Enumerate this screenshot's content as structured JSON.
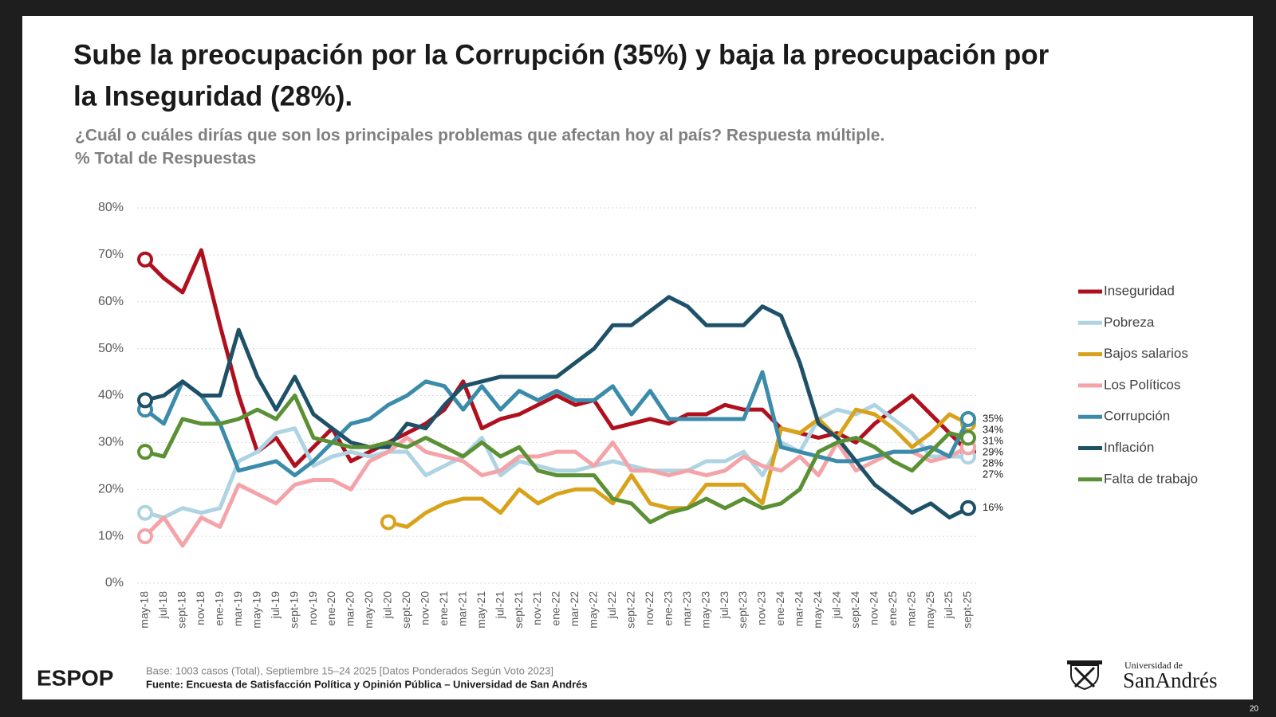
{
  "chart_data": {
    "type": "line",
    "title": [
      "Sube la preocupación por la Corrupción (35%) y baja la preocupación por",
      "la Inseguridad (28%)."
    ],
    "subtitle": [
      "¿Cuál o cuáles dirías que son los principales problemas que afectan hoy al país? Respuesta múltiple.",
      "% Total de Respuestas"
    ],
    "categories": [
      "may-18",
      "jul-18",
      "sept-18",
      "nov-18",
      "ene-19",
      "mar-19",
      "may-19",
      "jul-19",
      "sept-19",
      "nov-19",
      "ene-20",
      "mar-20",
      "may-20",
      "jul-20",
      "sept-20",
      "nov-20",
      "ene-21",
      "mar-21",
      "may-21",
      "jul-21",
      "sept-21",
      "nov-21",
      "ene-22",
      "mar-22",
      "may-22",
      "jul-22",
      "sept-22",
      "nov-22",
      "ene-23",
      "mar-23",
      "may-23",
      "jul-23",
      "sept-23",
      "nov-23",
      "ene-24",
      "mar-24",
      "may-24",
      "jul-24",
      "sept-24",
      "nov-24",
      "ene-25",
      "mar-25",
      "may-25",
      "jul-25",
      "sept-25"
    ],
    "ylim": [
      0,
      80
    ],
    "yticks": [
      {
        "value": 0,
        "label": "0%"
      },
      {
        "value": 10,
        "label": "10%"
      },
      {
        "value": 20,
        "label": "20%"
      },
      {
        "value": 30,
        "label": "30%"
      },
      {
        "value": 40,
        "label": "40%"
      },
      {
        "value": 50,
        "label": "50%"
      },
      {
        "value": 60,
        "label": "60%"
      },
      {
        "value": 70,
        "label": "70%"
      },
      {
        "value": 80,
        "label": "80%"
      }
    ],
    "grid": true,
    "legend": "right",
    "series": [
      {
        "name": "Inseguridad",
        "color": "#b0101e",
        "values": [
          69,
          65,
          62,
          71,
          55,
          40,
          28,
          31,
          25,
          29,
          33,
          26,
          28,
          30,
          32,
          34,
          37,
          43,
          33,
          35,
          36,
          38,
          40,
          38,
          39,
          33,
          34,
          35,
          34,
          36,
          36,
          38,
          37,
          37,
          33,
          32,
          31,
          32,
          30,
          34,
          37,
          40,
          36,
          32,
          28
        ],
        "value_labels": [
          null,
          null,
          null,
          null,
          null,
          null,
          null,
          null,
          null,
          null,
          null,
          null,
          null,
          null,
          null,
          null,
          null,
          null,
          null,
          null,
          null,
          null,
          null,
          null,
          null,
          null,
          null,
          null,
          null,
          null,
          null,
          null,
          null,
          null,
          null,
          null,
          null,
          null,
          null,
          null,
          null,
          null,
          null,
          null,
          "28%"
        ]
      },
      {
        "name": "Pobreza",
        "color": "#aed3e3",
        "values": [
          15,
          14,
          16,
          15,
          16,
          26,
          28,
          32,
          33,
          25,
          27,
          28,
          27,
          28,
          28,
          23,
          25,
          27,
          31,
          23,
          26,
          25,
          24,
          24,
          25,
          26,
          25,
          24,
          24,
          24,
          26,
          26,
          28,
          23,
          30,
          28,
          35,
          37,
          36,
          38,
          35,
          32,
          27,
          27,
          27
        ],
        "value_labels": [
          null,
          null,
          null,
          null,
          null,
          null,
          null,
          null,
          null,
          null,
          null,
          null,
          null,
          null,
          null,
          null,
          null,
          null,
          null,
          null,
          null,
          null,
          null,
          null,
          null,
          null,
          null,
          null,
          null,
          null,
          null,
          null,
          null,
          null,
          null,
          null,
          null,
          null,
          null,
          null,
          null,
          null,
          null,
          null,
          "27%"
        ]
      },
      {
        "name": "Bajos salarios",
        "color": "#d9a21b",
        "values": [
          null,
          null,
          null,
          null,
          null,
          null,
          null,
          null,
          null,
          null,
          null,
          null,
          null,
          13,
          12,
          15,
          17,
          18,
          18,
          15,
          20,
          17,
          19,
          20,
          20,
          17,
          23,
          17,
          16,
          16,
          21,
          21,
          21,
          17,
          33,
          32,
          35,
          31,
          37,
          36,
          33,
          29,
          32,
          36,
          34
        ],
        "value_labels": [
          null,
          null,
          null,
          null,
          null,
          null,
          null,
          null,
          null,
          null,
          null,
          null,
          null,
          null,
          null,
          null,
          null,
          null,
          null,
          null,
          null,
          null,
          null,
          null,
          null,
          null,
          null,
          null,
          null,
          null,
          null,
          null,
          null,
          null,
          null,
          null,
          null,
          null,
          null,
          null,
          null,
          null,
          null,
          null,
          "34%"
        ]
      },
      {
        "name": "Los Políticos",
        "color": "#f4a3a8",
        "values": [
          10,
          14,
          8,
          14,
          12,
          21,
          19,
          17,
          21,
          22,
          22,
          20,
          26,
          28,
          31,
          28,
          27,
          26,
          23,
          24,
          27,
          27,
          28,
          28,
          25,
          30,
          24,
          24,
          23,
          24,
          23,
          24,
          27,
          25,
          24,
          27,
          23,
          30,
          24,
          26,
          28,
          28,
          26,
          27,
          29
        ],
        "value_labels": [
          null,
          null,
          null,
          null,
          null,
          null,
          null,
          null,
          null,
          null,
          null,
          null,
          null,
          null,
          null,
          null,
          null,
          null,
          null,
          null,
          null,
          null,
          null,
          null,
          null,
          null,
          null,
          null,
          null,
          null,
          null,
          null,
          null,
          null,
          null,
          null,
          null,
          null,
          null,
          null,
          null,
          null,
          null,
          null,
          "29%"
        ]
      },
      {
        "name": "Corrupción",
        "color": "#3b8bab",
        "values": [
          37,
          34,
          43,
          40,
          34,
          24,
          25,
          26,
          23,
          26,
          30,
          34,
          35,
          38,
          40,
          43,
          42,
          37,
          42,
          37,
          41,
          39,
          41,
          39,
          39,
          42,
          36,
          41,
          35,
          35,
          35,
          35,
          35,
          45,
          29,
          28,
          27,
          26,
          26,
          27,
          28,
          28,
          29,
          27,
          35
        ],
        "value_labels": [
          null,
          null,
          null,
          null,
          null,
          null,
          null,
          null,
          null,
          null,
          null,
          null,
          null,
          null,
          null,
          null,
          null,
          null,
          null,
          null,
          null,
          null,
          null,
          null,
          null,
          null,
          null,
          null,
          null,
          null,
          null,
          null,
          null,
          null,
          null,
          null,
          null,
          null,
          null,
          null,
          null,
          null,
          null,
          null,
          "35%"
        ]
      },
      {
        "name": "Inflación",
        "color": "#1e5168",
        "values": [
          39,
          40,
          43,
          40,
          40,
          54,
          44,
          37,
          44,
          36,
          33,
          30,
          29,
          29,
          34,
          33,
          38,
          42,
          43,
          44,
          44,
          44,
          44,
          47,
          50,
          55,
          55,
          58,
          61,
          59,
          55,
          55,
          55,
          59,
          57,
          47,
          34,
          31,
          26,
          21,
          18,
          15,
          17,
          14,
          16
        ],
        "value_labels": [
          null,
          null,
          null,
          null,
          null,
          null,
          null,
          null,
          null,
          null,
          null,
          null,
          null,
          null,
          null,
          null,
          null,
          null,
          null,
          null,
          null,
          null,
          null,
          null,
          null,
          null,
          null,
          null,
          null,
          null,
          null,
          null,
          null,
          null,
          null,
          null,
          null,
          null,
          null,
          null,
          null,
          null,
          null,
          null,
          "16%"
        ]
      },
      {
        "name": "Falta de trabajo",
        "color": "#5b9035",
        "values": [
          28,
          27,
          35,
          34,
          34,
          35,
          37,
          35,
          40,
          31,
          30,
          29,
          29,
          30,
          29,
          31,
          29,
          27,
          30,
          27,
          29,
          24,
          23,
          23,
          23,
          18,
          17,
          13,
          15,
          16,
          18,
          16,
          18,
          16,
          17,
          20,
          28,
          30,
          31,
          29,
          26,
          24,
          28,
          32,
          31
        ],
        "value_labels": [
          null,
          null,
          null,
          null,
          null,
          null,
          null,
          null,
          null,
          null,
          null,
          null,
          null,
          null,
          null,
          null,
          null,
          null,
          null,
          null,
          null,
          null,
          null,
          null,
          null,
          null,
          null,
          null,
          null,
          null,
          null,
          null,
          null,
          null,
          null,
          null,
          null,
          null,
          null,
          null,
          null,
          null,
          null,
          null,
          "31%"
        ]
      }
    ]
  },
  "footer": {
    "base": "Base: 1003 casos (Total), Septiembre 15–24 2025 [Datos Ponderados Según Voto 2023]",
    "source": "Fuente: Encuesta de Satisfacción Política y Opinión Pública – Universidad de San Andrés",
    "logo": "ESPOP",
    "university_small": "Universidad de",
    "university_name": "SanAndrés"
  },
  "page_number": "20"
}
